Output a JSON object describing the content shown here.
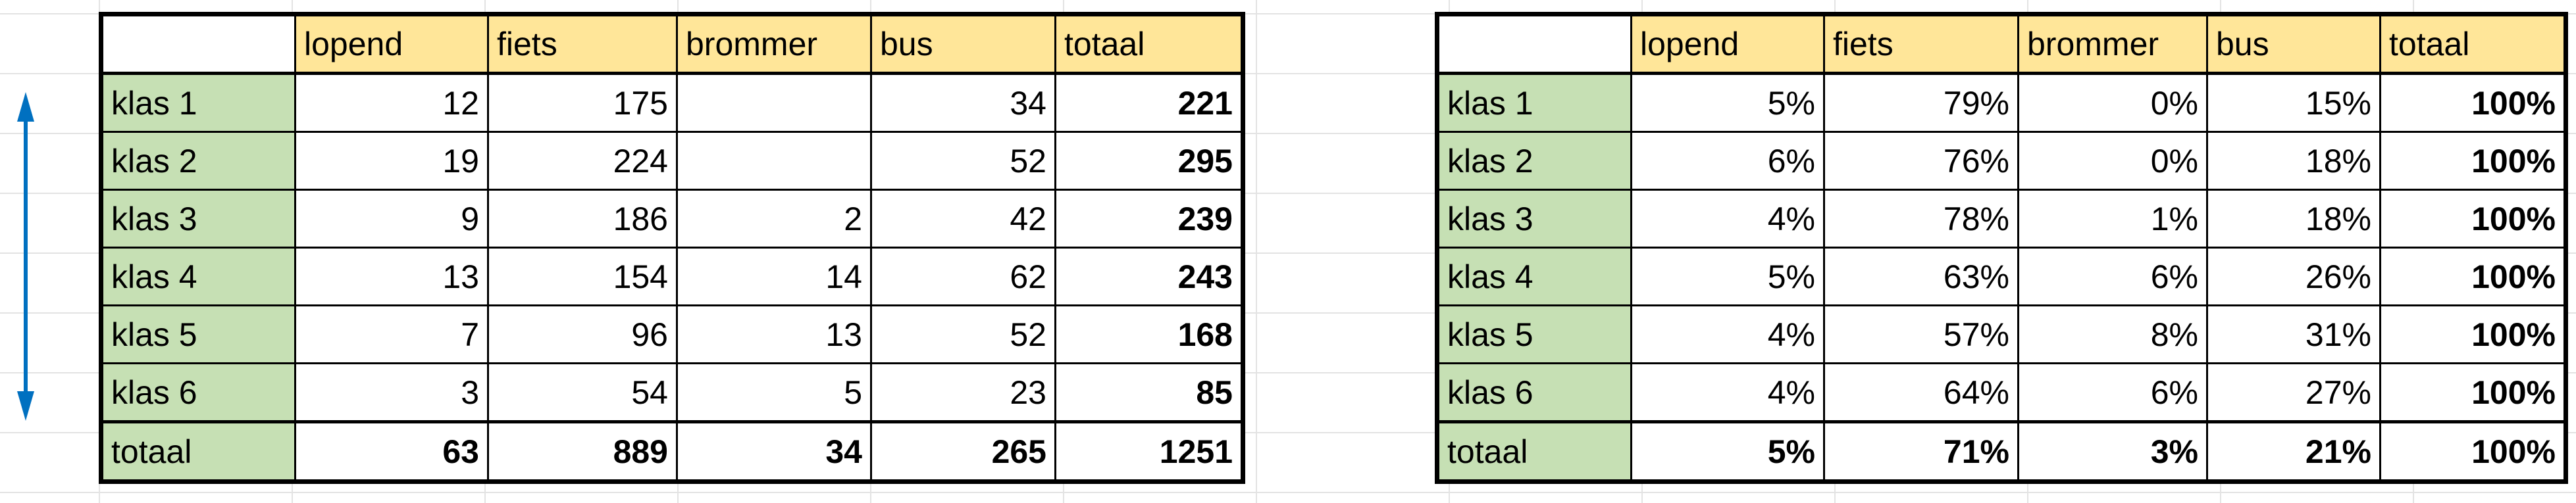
{
  "colors": {
    "header_bg": "#ffe699",
    "label_bg": "#c6e0b4",
    "arrow": "#0070c0"
  },
  "arrow_icon": "double-headed-vertical-arrow",
  "left_table": {
    "headers": [
      "",
      "lopend",
      "fiets",
      "brommer",
      "bus",
      "totaal"
    ],
    "rows": [
      {
        "label": "klas 1",
        "values": [
          "12",
          "175",
          "",
          "34",
          "221"
        ]
      },
      {
        "label": "klas 2",
        "values": [
          "19",
          "224",
          "",
          "52",
          "295"
        ]
      },
      {
        "label": "klas 3",
        "values": [
          "9",
          "186",
          "2",
          "42",
          "239"
        ]
      },
      {
        "label": "klas 4",
        "values": [
          "13",
          "154",
          "14",
          "62",
          "243"
        ]
      },
      {
        "label": "klas 5",
        "values": [
          "7",
          "96",
          "13",
          "52",
          "168"
        ]
      },
      {
        "label": "klas 6",
        "values": [
          "3",
          "54",
          "5",
          "23",
          "85"
        ]
      },
      {
        "label": "totaal",
        "values": [
          "63",
          "889",
          "34",
          "265",
          "1251"
        ]
      }
    ]
  },
  "right_table": {
    "headers": [
      "",
      "lopend",
      "fiets",
      "brommer",
      "bus",
      "totaal"
    ],
    "rows": [
      {
        "label": "klas 1",
        "values": [
          "5%",
          "79%",
          "0%",
          "15%",
          "100%"
        ]
      },
      {
        "label": "klas 2",
        "values": [
          "6%",
          "76%",
          "0%",
          "18%",
          "100%"
        ]
      },
      {
        "label": "klas 3",
        "values": [
          "4%",
          "78%",
          "1%",
          "18%",
          "100%"
        ]
      },
      {
        "label": "klas 4",
        "values": [
          "5%",
          "63%",
          "6%",
          "26%",
          "100%"
        ]
      },
      {
        "label": "klas 5",
        "values": [
          "4%",
          "57%",
          "8%",
          "31%",
          "100%"
        ]
      },
      {
        "label": "klas 6",
        "values": [
          "4%",
          "64%",
          "6%",
          "27%",
          "100%"
        ]
      },
      {
        "label": "totaal",
        "values": [
          "5%",
          "71%",
          "3%",
          "21%",
          "100%"
        ]
      }
    ]
  }
}
